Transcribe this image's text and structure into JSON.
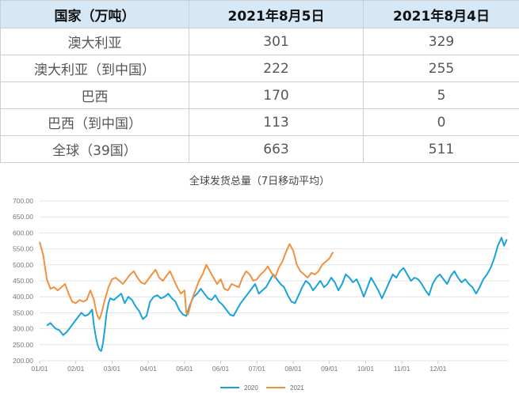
{
  "table": {
    "headers": [
      "国家（万吨）",
      "2021年8月5日",
      "2021年8月4日"
    ],
    "rows": [
      {
        "name": "澳大利亚",
        "v1": "301",
        "v2": "329"
      },
      {
        "name": "澳大利亚（到中国）",
        "v1": "222",
        "v2": "255"
      },
      {
        "name": "巴西",
        "v1": "170",
        "v2": "5"
      },
      {
        "name": "巴西（到中国）",
        "v1": "113",
        "v2": "0"
      },
      {
        "name": "全球（39国）",
        "v1": "663",
        "v2": "511"
      }
    ]
  },
  "chart_data": {
    "type": "line",
    "title": "全球发货总量（7日移动平均）",
    "ylim": [
      200,
      700
    ],
    "y_ticks": [
      "200.00",
      "250.00",
      "300.00",
      "350.00",
      "400.00",
      "450.00",
      "500.00",
      "550.00",
      "600.00",
      "650.00",
      "700.00"
    ],
    "x_ticks": [
      "01/01",
      "02/01",
      "03/01",
      "04/01",
      "05/01",
      "06/01",
      "07/01",
      "08/01",
      "09/01",
      "10/01",
      "11/01",
      "12/01"
    ],
    "grid": true,
    "legend": "bottom",
    "series": [
      {
        "name": "2020",
        "color": "#1aa3db",
        "points": [
          [
            0.2,
            310
          ],
          [
            0.3,
            318
          ],
          [
            0.4,
            305
          ],
          [
            0.45,
            300
          ],
          [
            0.55,
            295
          ],
          [
            0.65,
            280
          ],
          [
            0.75,
            290
          ],
          [
            0.85,
            305
          ],
          [
            0.95,
            320
          ],
          [
            1.05,
            335
          ],
          [
            1.15,
            350
          ],
          [
            1.25,
            340
          ],
          [
            1.35,
            345
          ],
          [
            1.45,
            360
          ],
          [
            1.5,
            310
          ],
          [
            1.55,
            275
          ],
          [
            1.6,
            250
          ],
          [
            1.65,
            235
          ],
          [
            1.7,
            230
          ],
          [
            1.75,
            255
          ],
          [
            1.8,
            300
          ],
          [
            1.85,
            350
          ],
          [
            1.9,
            380
          ],
          [
            1.95,
            395
          ],
          [
            2.05,
            390
          ],
          [
            2.15,
            400
          ],
          [
            2.25,
            410
          ],
          [
            2.35,
            380
          ],
          [
            2.45,
            400
          ],
          [
            2.55,
            390
          ],
          [
            2.65,
            370
          ],
          [
            2.75,
            355
          ],
          [
            2.85,
            330
          ],
          [
            2.95,
            340
          ],
          [
            3.05,
            385
          ],
          [
            3.15,
            400
          ],
          [
            3.25,
            405
          ],
          [
            3.35,
            395
          ],
          [
            3.45,
            400
          ],
          [
            3.55,
            410
          ],
          [
            3.65,
            395
          ],
          [
            3.75,
            385
          ],
          [
            3.85,
            360
          ],
          [
            3.95,
            345
          ],
          [
            4.05,
            340
          ],
          [
            4.15,
            375
          ],
          [
            4.25,
            400
          ],
          [
            4.35,
            410
          ],
          [
            4.45,
            425
          ],
          [
            4.55,
            410
          ],
          [
            4.65,
            395
          ],
          [
            4.75,
            390
          ],
          [
            4.85,
            405
          ],
          [
            4.95,
            385
          ],
          [
            5.05,
            375
          ],
          [
            5.15,
            360
          ],
          [
            5.25,
            345
          ],
          [
            5.35,
            340
          ],
          [
            5.45,
            360
          ],
          [
            5.55,
            380
          ],
          [
            5.65,
            395
          ],
          [
            5.75,
            410
          ],
          [
            5.85,
            425
          ],
          [
            5.95,
            440
          ],
          [
            6.05,
            410
          ],
          [
            6.15,
            420
          ],
          [
            6.25,
            430
          ],
          [
            6.35,
            450
          ],
          [
            6.45,
            470
          ],
          [
            6.55,
            455
          ],
          [
            6.65,
            440
          ],
          [
            6.75,
            430
          ],
          [
            6.85,
            405
          ],
          [
            6.95,
            385
          ],
          [
            7.05,
            380
          ],
          [
            7.15,
            405
          ],
          [
            7.25,
            430
          ],
          [
            7.35,
            450
          ],
          [
            7.45,
            440
          ],
          [
            7.55,
            420
          ],
          [
            7.65,
            435
          ],
          [
            7.75,
            450
          ],
          [
            7.85,
            430
          ],
          [
            7.95,
            440
          ],
          [
            8.05,
            460
          ],
          [
            8.15,
            445
          ],
          [
            8.25,
            420
          ],
          [
            8.35,
            440
          ],
          [
            8.45,
            470
          ],
          [
            8.55,
            460
          ],
          [
            8.65,
            445
          ],
          [
            8.75,
            455
          ],
          [
            8.85,
            430
          ],
          [
            8.95,
            400
          ],
          [
            9.05,
            430
          ],
          [
            9.15,
            460
          ],
          [
            9.25,
            440
          ],
          [
            9.35,
            420
          ],
          [
            9.45,
            395
          ],
          [
            9.55,
            420
          ],
          [
            9.65,
            445
          ],
          [
            9.75,
            470
          ],
          [
            9.85,
            460
          ],
          [
            9.95,
            480
          ],
          [
            10.05,
            490
          ],
          [
            10.15,
            470
          ],
          [
            10.25,
            450
          ],
          [
            10.35,
            460
          ],
          [
            10.45,
            455
          ],
          [
            10.55,
            440
          ],
          [
            10.65,
            420
          ],
          [
            10.75,
            405
          ],
          [
            10.85,
            440
          ],
          [
            10.95,
            460
          ],
          [
            11.05,
            470
          ],
          [
            11.15,
            455
          ],
          [
            11.25,
            440
          ],
          [
            11.35,
            465
          ],
          [
            11.45,
            480
          ],
          [
            11.55,
            460
          ],
          [
            11.65,
            445
          ],
          [
            11.75,
            455
          ],
          [
            11.85,
            440
          ],
          [
            11.95,
            430
          ],
          [
            12.05,
            410
          ],
          [
            12.15,
            430
          ],
          [
            12.25,
            455
          ],
          [
            12.35,
            470
          ],
          [
            12.45,
            490
          ],
          [
            12.55,
            520
          ],
          [
            12.65,
            560
          ],
          [
            12.75,
            585
          ],
          [
            12.82,
            560
          ],
          [
            12.9,
            580
          ]
        ]
      },
      {
        "name": "2021",
        "color": "#f0913f",
        "points": [
          [
            0.0,
            572
          ],
          [
            0.1,
            530
          ],
          [
            0.2,
            455
          ],
          [
            0.3,
            425
          ],
          [
            0.4,
            430
          ],
          [
            0.5,
            420
          ],
          [
            0.6,
            430
          ],
          [
            0.7,
            440
          ],
          [
            0.8,
            410
          ],
          [
            0.9,
            385
          ],
          [
            1.0,
            380
          ],
          [
            1.1,
            390
          ],
          [
            1.2,
            385
          ],
          [
            1.3,
            390
          ],
          [
            1.4,
            420
          ],
          [
            1.5,
            390
          ],
          [
            1.55,
            360
          ],
          [
            1.6,
            340
          ],
          [
            1.65,
            330
          ],
          [
            1.7,
            345
          ],
          [
            1.8,
            390
          ],
          [
            1.9,
            430
          ],
          [
            2.0,
            455
          ],
          [
            2.1,
            460
          ],
          [
            2.2,
            450
          ],
          [
            2.3,
            440
          ],
          [
            2.4,
            455
          ],
          [
            2.5,
            470
          ],
          [
            2.6,
            480
          ],
          [
            2.7,
            460
          ],
          [
            2.8,
            445
          ],
          [
            2.9,
            440
          ],
          [
            3.0,
            455
          ],
          [
            3.1,
            470
          ],
          [
            3.2,
            485
          ],
          [
            3.3,
            460
          ],
          [
            3.4,
            450
          ],
          [
            3.5,
            465
          ],
          [
            3.6,
            480
          ],
          [
            3.7,
            455
          ],
          [
            3.8,
            430
          ],
          [
            3.9,
            410
          ],
          [
            4.0,
            420
          ],
          [
            4.05,
            350
          ],
          [
            4.1,
            345
          ],
          [
            4.2,
            390
          ],
          [
            4.3,
            420
          ],
          [
            4.4,
            450
          ],
          [
            4.5,
            470
          ],
          [
            4.6,
            500
          ],
          [
            4.7,
            480
          ],
          [
            4.8,
            460
          ],
          [
            4.9,
            440
          ],
          [
            5.0,
            455
          ],
          [
            5.1,
            425
          ],
          [
            5.2,
            420
          ],
          [
            5.3,
            440
          ],
          [
            5.4,
            435
          ],
          [
            5.5,
            430
          ],
          [
            5.6,
            460
          ],
          [
            5.7,
            480
          ],
          [
            5.8,
            470
          ],
          [
            5.9,
            450
          ],
          [
            6.0,
            455
          ],
          [
            6.1,
            470
          ],
          [
            6.2,
            480
          ],
          [
            6.3,
            495
          ],
          [
            6.4,
            475
          ],
          [
            6.5,
            460
          ],
          [
            6.6,
            490
          ],
          [
            6.7,
            510
          ],
          [
            6.8,
            540
          ],
          [
            6.9,
            565
          ],
          [
            7.0,
            545
          ],
          [
            7.1,
            500
          ],
          [
            7.2,
            480
          ],
          [
            7.3,
            470
          ],
          [
            7.4,
            460
          ],
          [
            7.5,
            475
          ],
          [
            7.6,
            470
          ],
          [
            7.7,
            480
          ],
          [
            7.8,
            500
          ],
          [
            7.9,
            510
          ],
          [
            8.0,
            520
          ],
          [
            8.1,
            540
          ]
        ]
      }
    ]
  }
}
